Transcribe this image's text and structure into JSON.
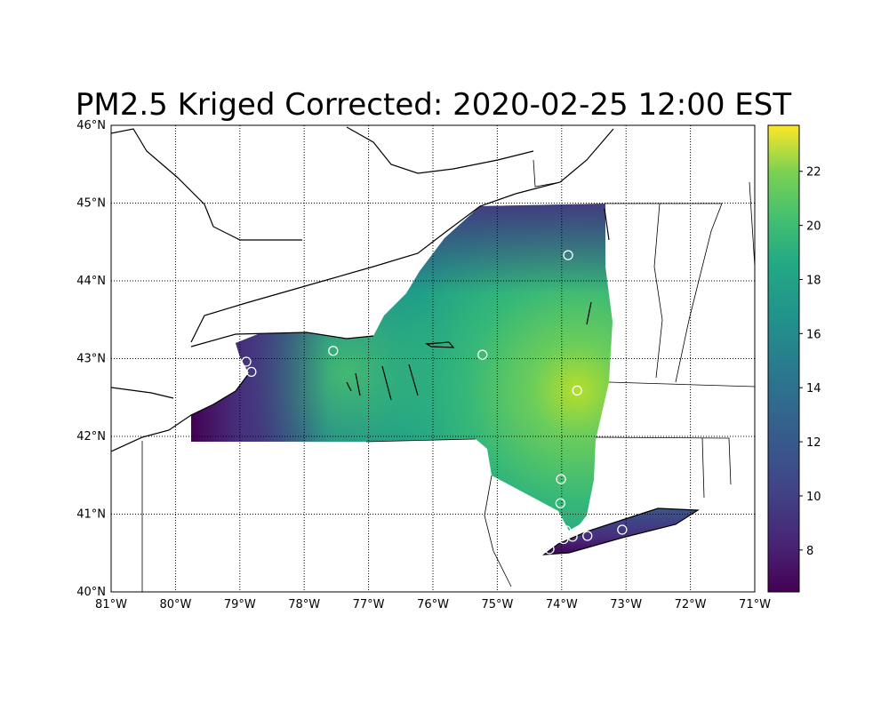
{
  "title": "PM2.5 Kriged Corrected: 2020-02-25 12:00 EST",
  "chart_data": {
    "type": "heatmap",
    "projection": "cylindrical lat/lon",
    "xlim": [
      -81,
      -71
    ],
    "ylim": [
      40,
      46
    ],
    "x_ticks": [
      "81°W",
      "80°W",
      "79°W",
      "78°W",
      "77°W",
      "76°W",
      "75°W",
      "74°W",
      "73°W",
      "72°W",
      "71°W"
    ],
    "y_ticks": [
      "40°N",
      "41°N",
      "42°N",
      "43°N",
      "44°N",
      "45°N",
      "46°N"
    ],
    "grid": "dotted",
    "colormap": "viridis",
    "colorbar": {
      "range": [
        6.45,
        23.7
      ],
      "ticks": [
        "8",
        "10",
        "12",
        "14",
        "16",
        "18",
        "20",
        "22"
      ],
      "placement": "right"
    },
    "field_max_location": {
      "lon": -73.76,
      "lat": 42.59,
      "value": 23
    },
    "stations": [
      {
        "lon": -73.9,
        "lat": 44.33
      },
      {
        "lon": -75.23,
        "lat": 43.05
      },
      {
        "lon": -77.55,
        "lat": 43.1
      },
      {
        "lon": -78.9,
        "lat": 42.96
      },
      {
        "lon": -78.82,
        "lat": 42.83
      },
      {
        "lon": -73.76,
        "lat": 42.59
      },
      {
        "lon": -74.01,
        "lat": 41.45
      },
      {
        "lon": -74.02,
        "lat": 41.14
      },
      {
        "lon": -73.06,
        "lat": 40.8
      },
      {
        "lon": -73.6,
        "lat": 40.72
      },
      {
        "lon": -73.83,
        "lat": 40.71
      },
      {
        "lon": -73.93,
        "lat": 40.79
      },
      {
        "lon": -73.97,
        "lat": 40.68
      },
      {
        "lon": -74.19,
        "lat": 40.55
      }
    ]
  }
}
